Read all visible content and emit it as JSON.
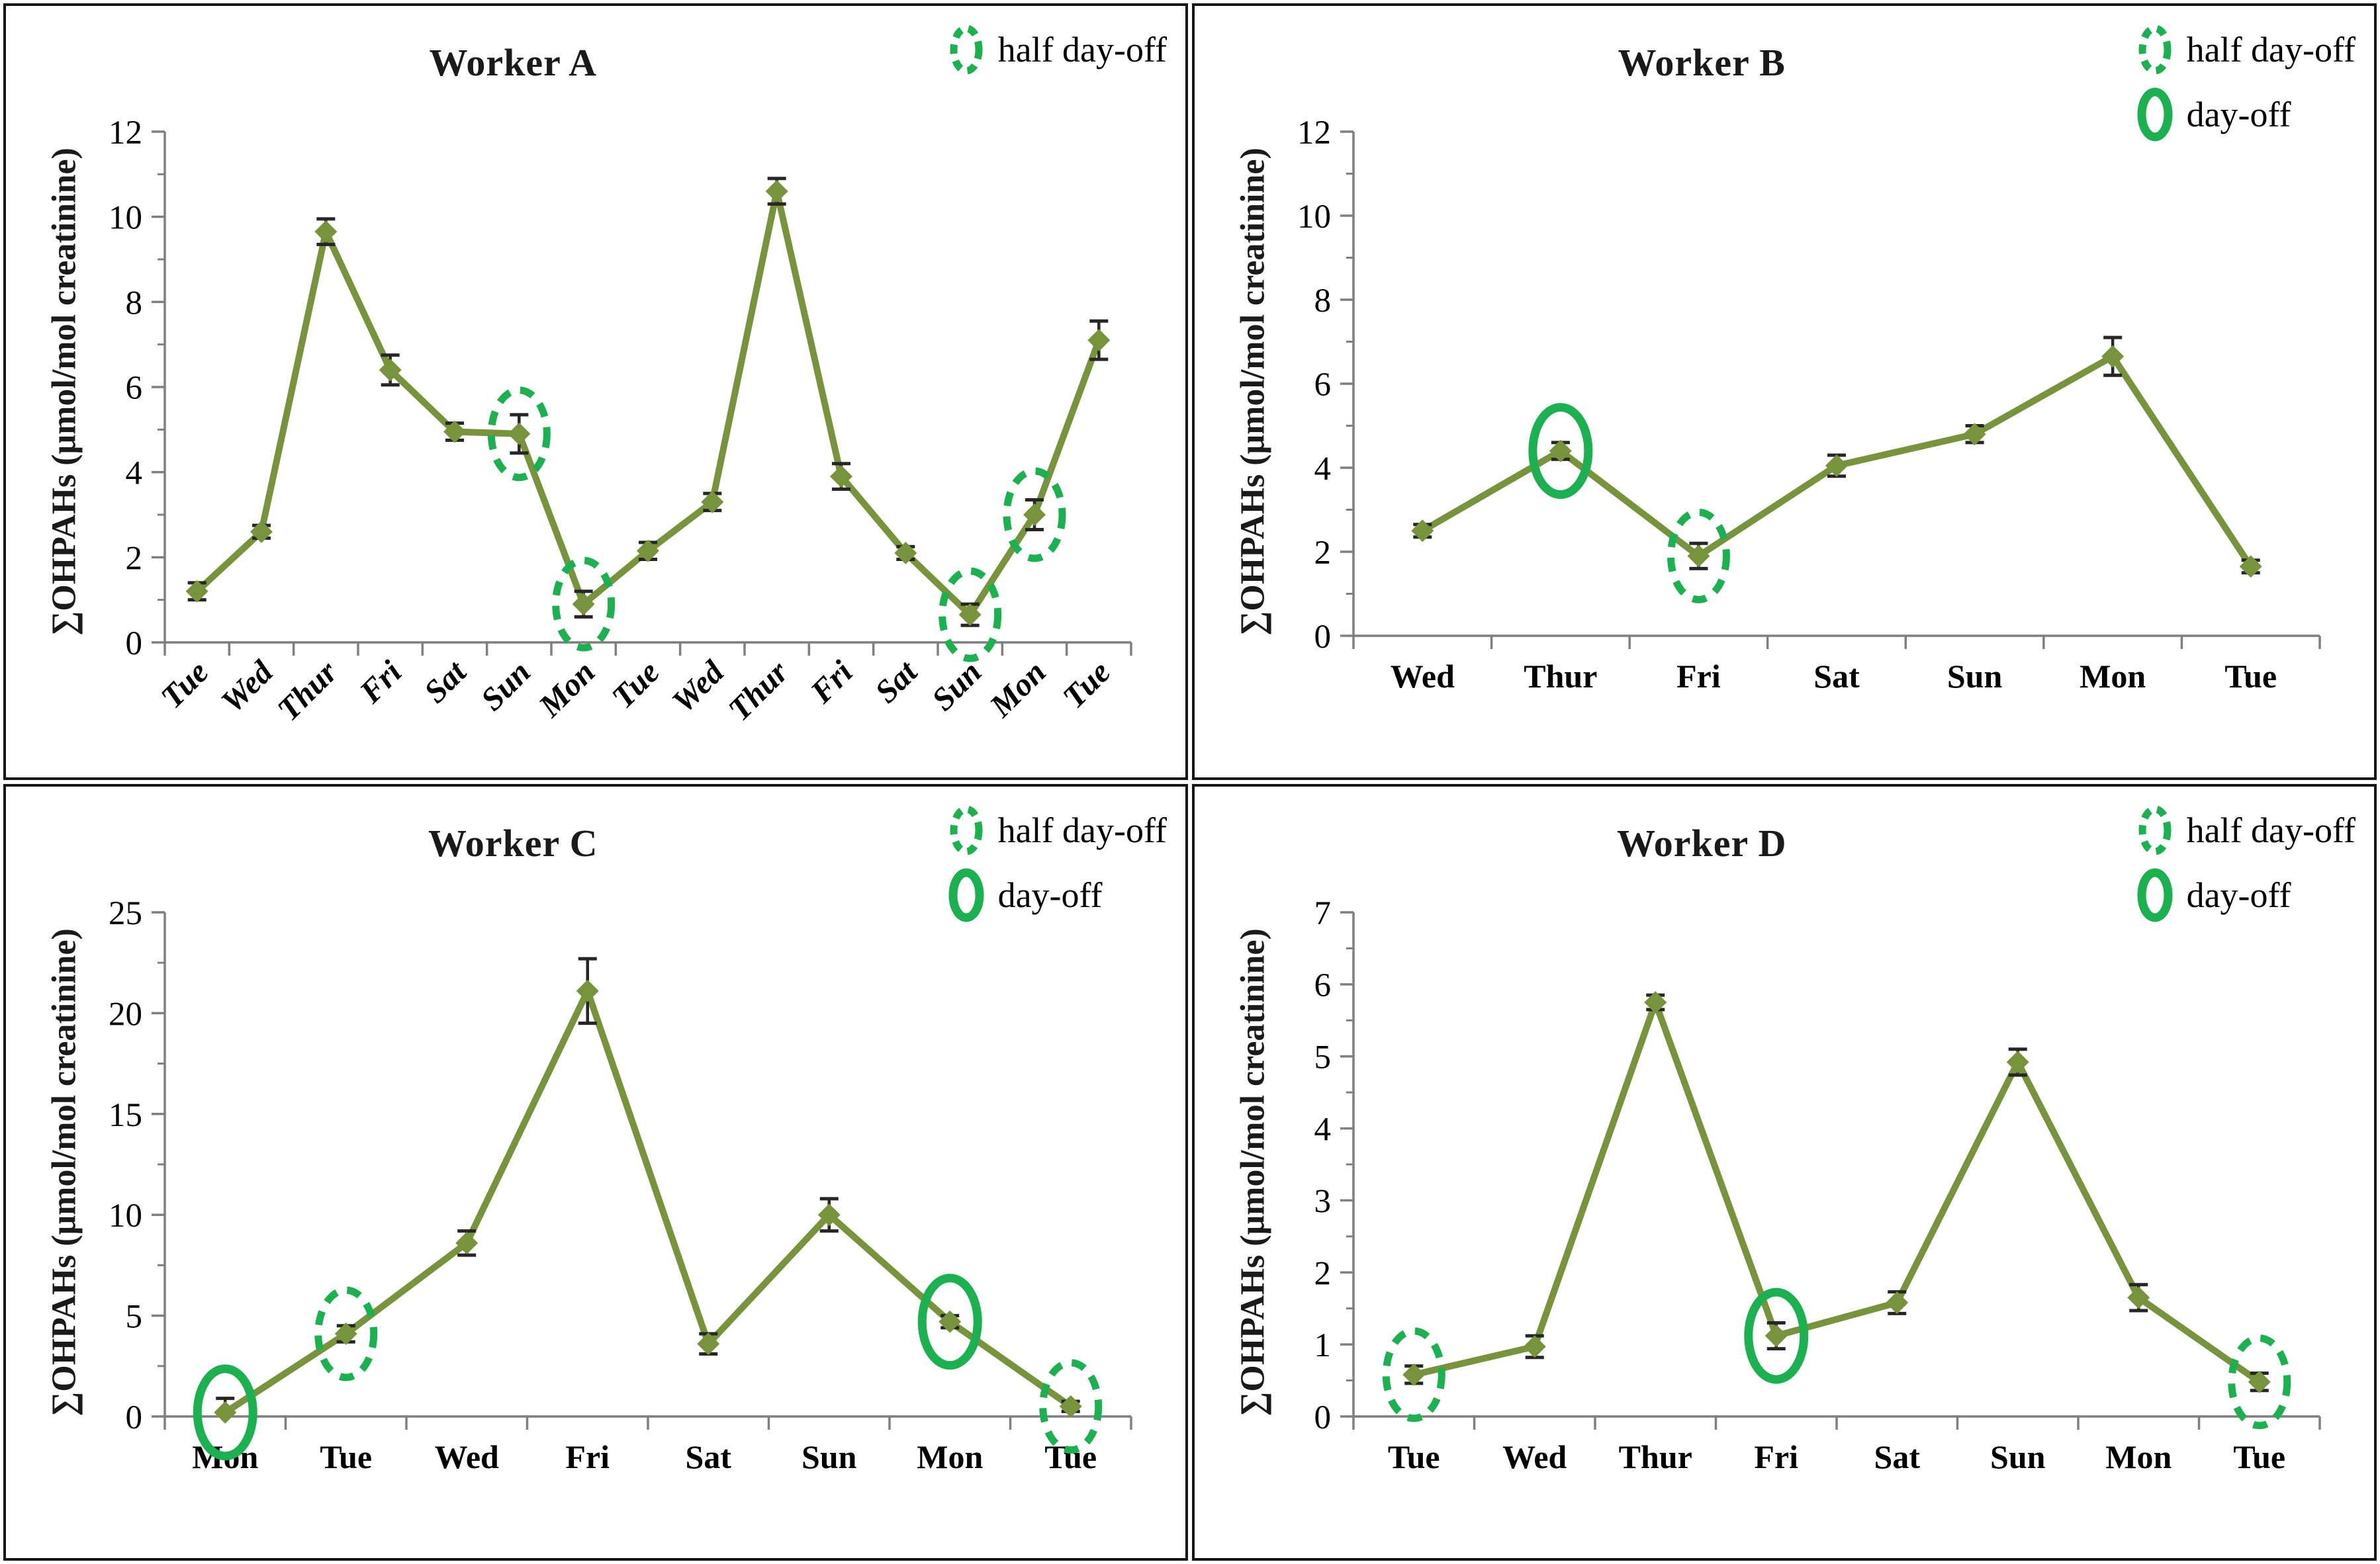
{
  "colors": {
    "series_line": "#77933C",
    "marker": "#77933C",
    "error_bar": "#262626",
    "axis": "#7f7f7f",
    "annotation_green": "#1CB150",
    "text": "#000000",
    "panel_border": "#161616"
  },
  "legend_labels": {
    "half": "half day-off",
    "day": "day-off"
  },
  "chart_data": [
    {
      "type": "line",
      "title": "Worker A",
      "ylabel": "∑OHPAHs (μmol/mol creatinine)",
      "categories": [
        "Tue",
        "Wed",
        "Thur",
        "Fri",
        "Sat",
        "Sun",
        "Mon",
        "Tue",
        "Wed",
        "Thur",
        "Fri",
        "Sat",
        "Sun",
        "Mon",
        "Tue"
      ],
      "values": [
        1.2,
        2.6,
        9.65,
        6.4,
        4.95,
        4.9,
        0.9,
        2.15,
        3.3,
        10.6,
        3.9,
        2.1,
        0.65,
        3.0,
        7.1
      ],
      "errors": [
        0.2,
        0.15,
        0.3,
        0.35,
        0.2,
        0.45,
        0.3,
        0.2,
        0.2,
        0.3,
        0.3,
        0.15,
        0.25,
        0.35,
        0.45
      ],
      "annotations": [
        {
          "index": 5,
          "kind": "half day-off"
        },
        {
          "index": 6,
          "kind": "half day-off"
        },
        {
          "index": 12,
          "kind": "half day-off"
        },
        {
          "index": 13,
          "kind": "half day-off"
        }
      ],
      "ylim": [
        0,
        12
      ],
      "ytick_step": 2,
      "grid": false,
      "legend_position": "top-right",
      "legend": [
        "half day-off"
      ],
      "x_labels_rotated": true
    },
    {
      "type": "line",
      "title": "Worker B",
      "ylabel": "∑OHPAHs (μmol/mol creatinine)",
      "categories": [
        "Wed",
        "Thur",
        "Fri",
        "Sat",
        "Sun",
        "Mon",
        "Tue"
      ],
      "values": [
        2.5,
        4.4,
        1.9,
        4.05,
        4.8,
        6.65,
        1.65
      ],
      "errors": [
        0.15,
        0.2,
        0.3,
        0.25,
        0.2,
        0.45,
        0.15
      ],
      "annotations": [
        {
          "index": 1,
          "kind": "day-off"
        },
        {
          "index": 2,
          "kind": "half day-off"
        }
      ],
      "ylim": [
        0,
        12
      ],
      "ytick_step": 2,
      "grid": false,
      "legend_position": "top-right",
      "legend": [
        "half day-off",
        "day-off"
      ],
      "x_labels_rotated": false
    },
    {
      "type": "line",
      "title": "Worker C",
      "ylabel": "∑OHPAHs (μmol/mol creatinine)",
      "categories": [
        "Mon",
        "Tue",
        "Wed",
        "Fri",
        "Sat",
        "Sun",
        "Mon",
        "Tue"
      ],
      "values": [
        0.2,
        4.1,
        8.6,
        21.1,
        3.6,
        10.0,
        4.7,
        0.5
      ],
      "errors": [
        0.7,
        0.4,
        0.6,
        1.6,
        0.5,
        0.8,
        0.3,
        0.25
      ],
      "annotations": [
        {
          "index": 0,
          "kind": "day-off"
        },
        {
          "index": 1,
          "kind": "half day-off"
        },
        {
          "index": 6,
          "kind": "day-off"
        },
        {
          "index": 7,
          "kind": "half day-off"
        }
      ],
      "ylim": [
        0,
        25
      ],
      "ytick_step": 5,
      "grid": false,
      "legend_position": "top-right",
      "legend": [
        "half day-off",
        "day-off"
      ],
      "x_labels_rotated": false
    },
    {
      "type": "line",
      "title": "Worker D",
      "ylabel": "∑OHPAHs (μmol/mol creatinine)",
      "categories": [
        "Tue",
        "Wed",
        "Thur",
        "Fri",
        "Sat",
        "Sun",
        "Mon",
        "Tue"
      ],
      "values": [
        0.58,
        0.97,
        5.75,
        1.12,
        1.58,
        4.92,
        1.65,
        0.48
      ],
      "errors": [
        0.12,
        0.15,
        0.1,
        0.18,
        0.15,
        0.18,
        0.18,
        0.12
      ],
      "annotations": [
        {
          "index": 0,
          "kind": "half day-off"
        },
        {
          "index": 3,
          "kind": "day-off"
        },
        {
          "index": 7,
          "kind": "half day-off"
        }
      ],
      "ylim": [
        0,
        7
      ],
      "ytick_step": 1,
      "grid": false,
      "legend_position": "top-right",
      "legend": [
        "half day-off",
        "day-off"
      ],
      "x_labels_rotated": false
    }
  ]
}
